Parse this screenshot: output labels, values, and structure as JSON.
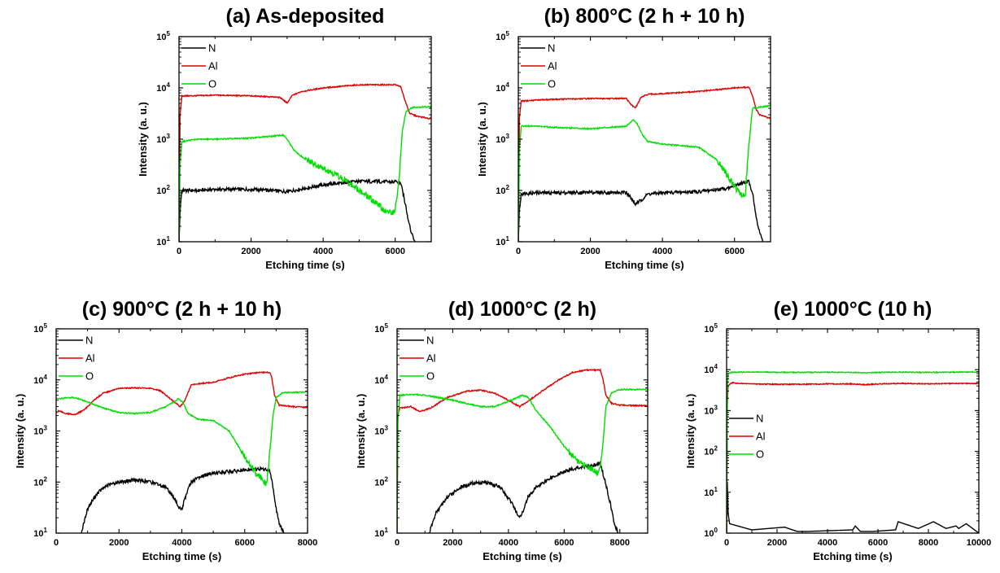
{
  "colors": {
    "N": "#000000",
    "Al": "#e00000",
    "O": "#00dd00"
  },
  "chart_data": [
    {
      "type": "line",
      "title": "(a) As-deposited",
      "xlabel": "Etching time (s)",
      "ylabel": "Intensity (a. u.)",
      "xlim": [
        0,
        7000
      ],
      "ylim": [
        10,
        100000
      ],
      "yscale": "log",
      "xticks": [
        0,
        2000,
        4000,
        6000
      ],
      "yticks": [
        10,
        100,
        1000,
        10000,
        100000
      ],
      "legend": "top-left",
      "series": [
        {
          "name": "N",
          "x": [
            0,
            30,
            80,
            500,
            1000,
            2000,
            2500,
            3000,
            3500,
            4000,
            4500,
            5000,
            5500,
            6000,
            6150,
            6250,
            6350,
            6450,
            6550
          ],
          "y": [
            10,
            40,
            100,
            100,
            105,
            105,
            100,
            95,
            110,
            130,
            140,
            150,
            150,
            145,
            140,
            70,
            30,
            15,
            10
          ]
        },
        {
          "name": "Al",
          "x": [
            0,
            30,
            80,
            300,
            1000,
            2000,
            2800,
            3000,
            3150,
            3400,
            4000,
            5000,
            6000,
            6150,
            6300,
            6400,
            6600,
            7000
          ],
          "y": [
            10,
            3000,
            7000,
            7000,
            7200,
            7000,
            6500,
            5100,
            7200,
            8500,
            10000,
            11500,
            11500,
            10500,
            5000,
            3200,
            2800,
            2500
          ]
        },
        {
          "name": "O",
          "x": [
            0,
            30,
            80,
            500,
            1000,
            2000,
            2900,
            3000,
            3200,
            3500,
            4000,
            4500,
            5000,
            5500,
            5800,
            6000,
            6100,
            6200,
            6300,
            6500,
            7000
          ],
          "y": [
            10,
            300,
            900,
            1000,
            1000,
            1050,
            1200,
            1000,
            600,
            400,
            280,
            180,
            100,
            55,
            35,
            40,
            150,
            1500,
            3500,
            4200,
            4300
          ]
        }
      ]
    },
    {
      "type": "line",
      "title": "(b) 800°C (2 h + 10 h)",
      "xlabel": "Etching time (s)",
      "ylabel": "Intensity (a. u.)",
      "xlim": [
        0,
        7000
      ],
      "ylim": [
        10,
        100000
      ],
      "yscale": "log",
      "xticks": [
        0,
        2000,
        4000,
        6000
      ],
      "yticks": [
        10,
        100,
        1000,
        10000,
        100000
      ],
      "legend": "top-left",
      "series": [
        {
          "name": "N",
          "x": [
            0,
            30,
            80,
            500,
            1000,
            2000,
            3000,
            3150,
            3250,
            3350,
            3600,
            4000,
            5000,
            5800,
            6200,
            6400,
            6500,
            6600,
            6700,
            6800
          ],
          "y": [
            10,
            40,
            85,
            90,
            90,
            92,
            90,
            70,
            55,
            60,
            85,
            90,
            95,
            110,
            140,
            150,
            90,
            30,
            15,
            10
          ]
        },
        {
          "name": "Al",
          "x": [
            0,
            30,
            80,
            500,
            1000,
            2000,
            3000,
            3100,
            3250,
            3400,
            3600,
            4000,
            5000,
            6000,
            6400,
            6500,
            6600,
            6700,
            7000
          ],
          "y": [
            10,
            2500,
            5500,
            5800,
            6000,
            6200,
            6200,
            5000,
            4000,
            6500,
            7500,
            7700,
            8500,
            10000,
            10300,
            7000,
            3800,
            3000,
            2500
          ]
        },
        {
          "name": "O",
          "x": [
            0,
            30,
            80,
            500,
            1000,
            2000,
            3000,
            3200,
            3300,
            3450,
            3600,
            4000,
            5000,
            5500,
            5800,
            6000,
            6200,
            6300,
            6400,
            6500,
            7000
          ],
          "y": [
            10,
            600,
            1800,
            1800,
            1700,
            1600,
            1800,
            2400,
            2000,
            1200,
            900,
            800,
            700,
            400,
            200,
            120,
            80,
            90,
            800,
            4000,
            4500
          ]
        }
      ]
    },
    {
      "type": "line",
      "title": "(c) 900°C (2 h + 10 h)",
      "xlabel": "Etching time (s)",
      "ylabel": "Intensity (a. u.)",
      "xlim": [
        0,
        8000
      ],
      "ylim": [
        10,
        100000
      ],
      "yscale": "log",
      "xticks": [
        0,
        2000,
        4000,
        6000,
        8000
      ],
      "yticks": [
        10,
        100,
        1000,
        10000,
        100000
      ],
      "legend": "top-left",
      "series": [
        {
          "name": "N",
          "x": [
            800,
            1000,
            1300,
            1600,
            2000,
            2500,
            3000,
            3500,
            3800,
            3900,
            4000,
            4150,
            4300,
            4600,
            5000,
            5500,
            6000,
            6500,
            6800,
            6900,
            7000,
            7100,
            7250
          ],
          "y": [
            10,
            30,
            60,
            85,
            100,
            110,
            100,
            80,
            45,
            30,
            30,
            60,
            100,
            130,
            150,
            160,
            170,
            180,
            170,
            80,
            30,
            15,
            10
          ]
        },
        {
          "name": "Al",
          "x": [
            0,
            100,
            300,
            600,
            900,
            1200,
            1500,
            2000,
            2500,
            3000,
            3300,
            3600,
            3800,
            3950,
            4100,
            4300,
            4600,
            5000,
            5500,
            6000,
            6500,
            6800,
            6850,
            6950,
            7100,
            7500,
            8000
          ],
          "y": [
            2300,
            2500,
            2200,
            2100,
            2600,
            4000,
            5500,
            6800,
            7000,
            6800,
            6200,
            4500,
            3500,
            3000,
            4000,
            8000,
            8500,
            9000,
            11000,
            13000,
            14000,
            14000,
            12000,
            5000,
            3200,
            3000,
            2900
          ]
        },
        {
          "name": "O",
          "x": [
            0,
            500,
            700,
            1000,
            1500,
            2000,
            2500,
            3000,
            3500,
            3900,
            4050,
            4200,
            4500,
            5000,
            5500,
            5800,
            6000,
            6200,
            6500,
            6700,
            6800,
            6900,
            7000,
            7200,
            8000
          ],
          "y": [
            4300,
            4500,
            4300,
            3700,
            2800,
            2300,
            2200,
            2300,
            3000,
            4300,
            3500,
            2200,
            1700,
            1600,
            1000,
            500,
            300,
            200,
            120,
            90,
            400,
            2000,
            4500,
            5600,
            5800
          ]
        }
      ]
    },
    {
      "type": "line",
      "title": "(d) 1000°C (2 h)",
      "xlabel": "Etching time (s)",
      "ylabel": "Intensity (a. u.)",
      "xlim": [
        0,
        9000
      ],
      "ylim": [
        10,
        100000
      ],
      "yscale": "log",
      "xticks": [
        0,
        2000,
        4000,
        6000,
        8000
      ],
      "yticks": [
        10,
        100,
        1000,
        10000,
        100000
      ],
      "legend": "top-left",
      "series": [
        {
          "name": "N",
          "x": [
            1150,
            1400,
            1800,
            2200,
            2700,
            3200,
            3700,
            4100,
            4300,
            4400,
            4500,
            4700,
            5000,
            5500,
            6000,
            6500,
            7000,
            7300,
            7500,
            7700,
            7800,
            7950
          ],
          "y": [
            10,
            25,
            50,
            75,
            95,
            100,
            80,
            40,
            25,
            20,
            25,
            50,
            80,
            120,
            160,
            190,
            210,
            230,
            90,
            30,
            15,
            10
          ]
        },
        {
          "name": "Al",
          "x": [
            0,
            30,
            100,
            500,
            800,
            1200,
            1800,
            2500,
            3000,
            3500,
            4000,
            4400,
            4700,
            5200,
            5800,
            6300,
            6800,
            7300,
            7400,
            7500,
            7700,
            8000,
            9000
          ],
          "y": [
            10,
            2000,
            2800,
            3000,
            2400,
            2800,
            4500,
            6000,
            6300,
            5500,
            4000,
            3000,
            3800,
            6000,
            10000,
            14000,
            15500,
            15500,
            10000,
            5000,
            3500,
            3200,
            3100
          ]
        },
        {
          "name": "O",
          "x": [
            0,
            30,
            100,
            500,
            1000,
            1500,
            2000,
            3000,
            3500,
            4000,
            4500,
            4700,
            5000,
            5500,
            6000,
            6500,
            7000,
            7200,
            7300,
            7400,
            7500,
            7700,
            8000,
            9000
          ],
          "y": [
            10,
            1500,
            5000,
            5200,
            5000,
            4500,
            4000,
            3000,
            3000,
            3800,
            5000,
            4600,
            2500,
            1200,
            500,
            250,
            180,
            150,
            200,
            600,
            3000,
            5600,
            6500,
            6500
          ]
        }
      ]
    },
    {
      "type": "line",
      "title": "(e) 1000°C (10 h)",
      "xlabel": "Etching time (s)",
      "ylabel": "Intensity (a. u.)",
      "xlim": [
        0,
        10000
      ],
      "ylim": [
        1,
        100000
      ],
      "yscale": "log",
      "xticks": [
        0,
        2000,
        4000,
        6000,
        8000,
        10000
      ],
      "yticks": [
        1,
        10,
        100,
        1000,
        10000,
        100000
      ],
      "legend": "center-left",
      "series": [
        {
          "name": "N",
          "x": [
            0,
            30,
            60,
            120,
            1000,
            2300,
            2800,
            3200,
            5000,
            5100,
            5300,
            5800,
            6700,
            6800,
            7600,
            8200,
            8700,
            9100,
            9200,
            9500,
            10000
          ],
          "y": [
            1,
            18,
            3,
            1.7,
            1.2,
            1.4,
            1.1,
            1.1,
            1.2,
            1.5,
            1.1,
            1.1,
            1.2,
            1.9,
            1.3,
            1.9,
            1.3,
            1.5,
            1.3,
            1.7,
            1
          ]
        },
        {
          "name": "Al",
          "x": [
            0,
            30,
            60,
            200,
            500,
            1000,
            2000,
            3000,
            4000,
            5000,
            5500,
            6000,
            7000,
            8000,
            9000,
            10000
          ],
          "y": [
            1,
            1500,
            4000,
            4800,
            4600,
            4500,
            4400,
            4400,
            4500,
            4500,
            4300,
            4500,
            4600,
            4500,
            4600,
            4600
          ]
        },
        {
          "name": "O",
          "x": [
            0,
            30,
            60,
            200,
            500,
            1000,
            2000,
            3000,
            4000,
            5000,
            5500,
            6000,
            7000,
            8000,
            9000,
            10000
          ],
          "y": [
            1,
            3000,
            8000,
            8600,
            8700,
            8800,
            8600,
            8600,
            8700,
            8600,
            8400,
            8600,
            8700,
            8600,
            8700,
            8800
          ]
        }
      ]
    }
  ]
}
